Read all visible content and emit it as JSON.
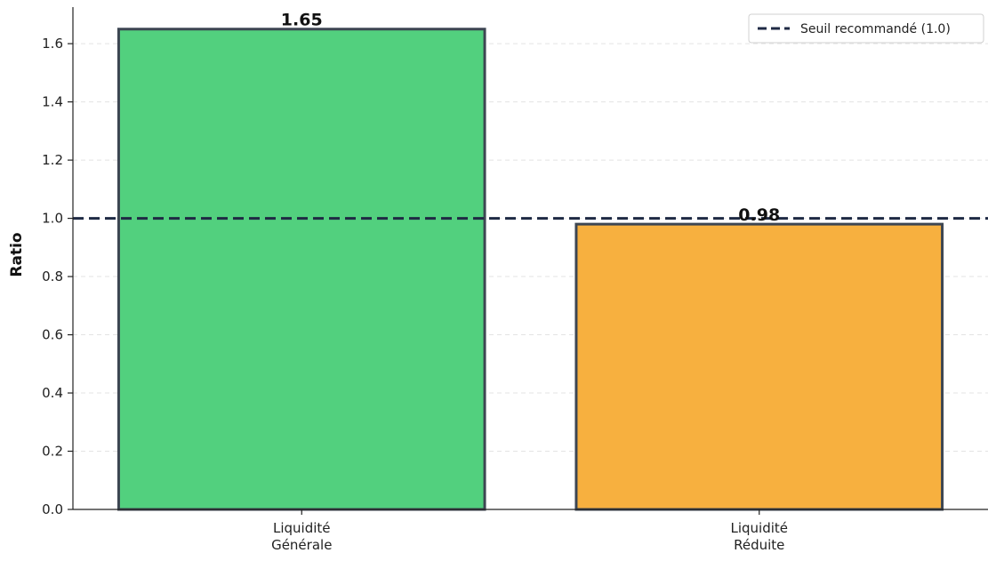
{
  "chart_data": {
    "type": "bar",
    "categories": [
      [
        "Liquidité",
        "Générale"
      ],
      [
        "Liquidité",
        "Réduite"
      ]
    ],
    "values": [
      1.65,
      0.98
    ],
    "value_labels": [
      "1.65",
      "0.98"
    ],
    "bar_colors": [
      "#52d07e",
      "#f7b03f"
    ],
    "bar_edge_color": "#3d4652",
    "ylabel": "Ratio",
    "xlabel": "",
    "ylim": [
      0,
      1.75
    ],
    "yticks": [
      0.0,
      0.2,
      0.4,
      0.6,
      0.8,
      1.0,
      1.2,
      1.4,
      1.6
    ],
    "ytick_labels": [
      "0.0",
      "0.2",
      "0.4",
      "0.6",
      "0.8",
      "1.0",
      "1.2",
      "1.4",
      "1.6"
    ],
    "grid": {
      "y": true,
      "x": false,
      "style": "dashed",
      "color": "#e3e3e3"
    },
    "reference_line": {
      "y": 1.0,
      "label": "Seuil recommandé (1.0)",
      "color": "#1f2a44",
      "style": "dashed"
    },
    "legend": {
      "position": "top-right",
      "entries": [
        "Seuil recommandé (1.0)"
      ]
    }
  }
}
